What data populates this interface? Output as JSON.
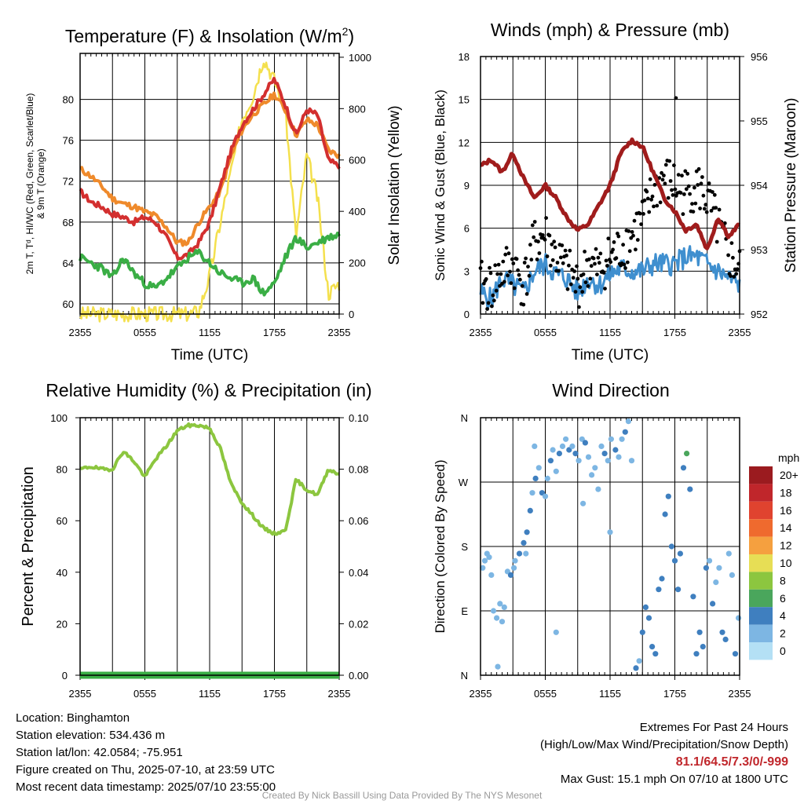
{
  "chart_data": [
    {
      "type": "line",
      "title": "Temperature (F) & Insolation (W/m²)",
      "title_prefix": "Temperature (F) & Insolation (W/m",
      "title_sup": "2",
      "title_suffix": ")",
      "xlabel": "Time (UTC)",
      "ylabel_left_lines": [
        "2m T, Tᵈ, HI/WC (Red, Green, Scarlet/Blue)",
        "& 9m T (Orange)"
      ],
      "ylabel_right": "Solar Insolation (Yellow)",
      "x_ticks": [
        "2355",
        "0555",
        "1155",
        "1755",
        "2355"
      ],
      "y_left_ticks": [
        60,
        64,
        68,
        72,
        76,
        80
      ],
      "y_left_range": [
        59,
        84.5
      ],
      "y_right_ticks": [
        0,
        200,
        400,
        600,
        800,
        1000
      ],
      "y_right_range": [
        0,
        1015
      ],
      "x_hours": [
        0,
        1,
        2,
        3,
        4,
        5,
        6,
        7,
        8,
        9,
        10,
        11,
        12,
        13,
        14,
        15,
        16,
        17,
        18,
        19,
        20,
        21,
        22,
        23,
        24
      ],
      "series": [
        {
          "color": "#ef8a2b",
          "axis": "left",
          "values": [
            73.2,
            72.5,
            71.5,
            70.3,
            69.8,
            69.5,
            69.0,
            68.6,
            67.5,
            66.0,
            66.0,
            68.0,
            69.5,
            71.0,
            74.5,
            77.0,
            78.5,
            79.5,
            80.5,
            79.0,
            76.5,
            78.0,
            77.5,
            75.0,
            74.5
          ]
        },
        {
          "color": "#d32f2f",
          "axis": "left",
          "values": [
            71.0,
            70.0,
            69.5,
            68.8,
            68.5,
            68.0,
            68.5,
            68.0,
            66.5,
            64.5,
            64.8,
            66.0,
            68.0,
            71.5,
            75.0,
            77.5,
            79.0,
            80.5,
            82.0,
            79.5,
            76.5,
            79.0,
            78.5,
            74.0,
            73.5
          ]
        },
        {
          "color": "#3aae45",
          "axis": "left",
          "values": [
            64.5,
            64.0,
            63.5,
            62.5,
            64.5,
            63.0,
            62.0,
            61.5,
            62.5,
            63.5,
            64.5,
            65.0,
            64.0,
            63.0,
            62.5,
            62.0,
            62.5,
            61.0,
            62.0,
            64.5,
            66.5,
            65.5,
            66.0,
            66.5,
            66.8
          ]
        },
        {
          "color": "#f4e04d",
          "axis": "right",
          "values": [
            0,
            0,
            0,
            0,
            0,
            0,
            0,
            0,
            0,
            0,
            0,
            10,
            150,
            360,
            560,
            760,
            850,
            1000,
            910,
            800,
            300,
            620,
            450,
            80,
            120
          ]
        }
      ]
    },
    {
      "type": "scatter",
      "title": "Winds (mph) & Pressure (mb)",
      "xlabel": "Time (UTC)",
      "ylabel_left": "Sonic Wind & Gust (Blue, Black)",
      "ylabel_right": "Station Pressure (Maroon)",
      "x_ticks": [
        "2355",
        "0555",
        "1155",
        "1755",
        "2355"
      ],
      "y_left_ticks": [
        0,
        3,
        6,
        9,
        12,
        15,
        18
      ],
      "y_left_range": [
        0,
        18
      ],
      "y_right_ticks": [
        952,
        953,
        954,
        955,
        956
      ],
      "y_right_range": [
        952,
        956
      ],
      "x_hours": [
        0,
        1,
        2,
        3,
        4,
        5,
        6,
        7,
        8,
        9,
        10,
        11,
        12,
        13,
        14,
        15,
        16,
        17,
        18,
        19,
        20,
        21,
        22,
        23,
        24
      ],
      "series": [
        {
          "type": "line",
          "color": "#3f8fcf",
          "axis": "left",
          "values": [
            1.5,
            1.0,
            2.5,
            2.0,
            1.5,
            3.0,
            3.5,
            2.8,
            2.5,
            1.5,
            2.5,
            2.0,
            2.8,
            3.2,
            3.0,
            3.0,
            3.5,
            3.5,
            3.5,
            4.0,
            4.0,
            3.5,
            3.0,
            2.5,
            2.0
          ]
        },
        {
          "type": "points",
          "color": "#000000",
          "axis": "left",
          "values": [
            2.0,
            1.8,
            3.0,
            3.5,
            2.0,
            5.0,
            5.5,
            4.0,
            3.0,
            2.0,
            3.5,
            3.0,
            4.0,
            4.5,
            5.5,
            6.5,
            8.5,
            9.5,
            9.0,
            8.5,
            9.0,
            8.0,
            6.0,
            4.0,
            3.0
          ],
          "max_point": {
            "x_hour": 18.1,
            "value": 15.1
          }
        },
        {
          "type": "line",
          "color": "#a01c1c",
          "axis": "right",
          "values": [
            954.3,
            954.4,
            954.2,
            954.5,
            954.1,
            953.8,
            954.0,
            953.8,
            953.5,
            953.3,
            953.4,
            953.7,
            954.0,
            954.5,
            954.7,
            954.6,
            954.2,
            953.8,
            953.6,
            953.3,
            953.4,
            953.0,
            953.5,
            953.2,
            953.4
          ]
        }
      ]
    },
    {
      "type": "line",
      "title": "Relative Humidity (%) & Precipitation (in)",
      "ylabel_left": "Percent & Precipitation",
      "x_ticks": [
        "2355",
        "0555",
        "1155",
        "1755",
        "2355"
      ],
      "y_left_ticks": [
        0,
        20,
        40,
        60,
        80,
        100
      ],
      "y_left_range": [
        0,
        100
      ],
      "y_right_ticks": [
        "0.00",
        "0.02",
        "0.04",
        "0.06",
        "0.08",
        "0.10"
      ],
      "y_right_range": [
        0,
        0.1
      ],
      "x_hours": [
        0,
        1,
        2,
        3,
        4,
        5,
        6,
        7,
        8,
        9,
        10,
        11,
        12,
        13,
        14,
        15,
        16,
        17,
        18,
        19,
        20,
        21,
        22,
        23,
        24
      ],
      "series": [
        {
          "color": "#8cc63f",
          "axis": "left",
          "values": [
            80,
            81,
            80,
            80,
            87,
            83,
            77,
            84,
            89,
            95,
            97,
            97,
            96,
            88,
            74,
            67,
            62,
            57,
            55,
            56,
            76,
            72,
            70,
            80,
            78
          ]
        },
        {
          "color": "#3aae45",
          "axis": "right",
          "values": [
            0,
            0,
            0,
            0,
            0,
            0,
            0,
            0,
            0,
            0,
            0,
            0,
            0,
            0,
            0,
            0,
            0,
            0,
            0,
            0,
            0,
            0,
            0,
            0,
            0
          ]
        }
      ]
    },
    {
      "type": "scatter",
      "title": "Wind Direction",
      "ylabel_left": "Direction (Colored By Speed)",
      "x_ticks": [
        "2355",
        "0555",
        "1155",
        "1755",
        "2355"
      ],
      "y_left_ticks": [
        "N",
        "E",
        "S",
        "W",
        "N"
      ],
      "y_left_range": [
        0,
        360
      ],
      "x_range_hours": [
        0,
        24
      ],
      "colorbar": {
        "unit": "mph",
        "labels": [
          "20+",
          "18",
          "16",
          "14",
          "12",
          "10",
          "8",
          "6",
          "4",
          "2",
          "0"
        ],
        "colors": [
          "#9b1b1f",
          "#c0262b",
          "#e0432f",
          "#ef6a2e",
          "#f5a03f",
          "#e7de55",
          "#8cc63f",
          "#4aa65c",
          "#3f7fbf",
          "#7db6e3",
          "#b4e0f5"
        ]
      },
      "points": [
        [
          0.2,
          150,
          1
        ],
        [
          0.4,
          160,
          1
        ],
        [
          0.6,
          170,
          1
        ],
        [
          0.8,
          165,
          1
        ],
        [
          1.0,
          140,
          2
        ],
        [
          1.2,
          90,
          2
        ],
        [
          1.5,
          80,
          2
        ],
        [
          1.8,
          100,
          2
        ],
        [
          2.0,
          75,
          2
        ],
        [
          2.2,
          95,
          2
        ],
        [
          2.5,
          145,
          2
        ],
        [
          2.8,
          140,
          3
        ],
        [
          3.2,
          160,
          2
        ],
        [
          3.6,
          170,
          3
        ],
        [
          4.0,
          185,
          3
        ],
        [
          4.3,
          200,
          3
        ],
        [
          4.6,
          230,
          3
        ],
        [
          4.8,
          255,
          2
        ],
        [
          5.1,
          275,
          3
        ],
        [
          5.4,
          290,
          2
        ],
        [
          5.7,
          255,
          3
        ],
        [
          6.0,
          250,
          2
        ],
        [
          6.2,
          275,
          2
        ],
        [
          6.5,
          300,
          3
        ],
        [
          6.7,
          315,
          2
        ],
        [
          7.0,
          285,
          2
        ],
        [
          7.3,
          310,
          3
        ],
        [
          7.6,
          320,
          2
        ],
        [
          7.9,
          330,
          2
        ],
        [
          8.2,
          315,
          3
        ],
        [
          8.5,
          320,
          2
        ],
        [
          8.8,
          310,
          3
        ],
        [
          9.1,
          300,
          2
        ],
        [
          9.4,
          330,
          2
        ],
        [
          9.7,
          325,
          3
        ],
        [
          10.0,
          305,
          2
        ],
        [
          10.3,
          280,
          2
        ],
        [
          10.6,
          290,
          2
        ],
        [
          10.9,
          260,
          2
        ],
        [
          11.2,
          320,
          2
        ],
        [
          11.5,
          310,
          3
        ],
        [
          11.8,
          300,
          2
        ],
        [
          12.1,
          330,
          2
        ],
        [
          12.5,
          315,
          3
        ],
        [
          12.8,
          305,
          2
        ],
        [
          13.1,
          330,
          2
        ],
        [
          13.4,
          340,
          3
        ],
        [
          13.7,
          355,
          2
        ],
        [
          14.0,
          300,
          2
        ],
        [
          14.4,
          10,
          3
        ],
        [
          14.7,
          20,
          2
        ],
        [
          15.0,
          60,
          3
        ],
        [
          15.3,
          95,
          3
        ],
        [
          15.6,
          80,
          3
        ],
        [
          15.9,
          40,
          3
        ],
        [
          16.2,
          30,
          4
        ],
        [
          16.5,
          120,
          3
        ],
        [
          16.8,
          135,
          3
        ],
        [
          17.1,
          225,
          3
        ],
        [
          17.4,
          250,
          3
        ],
        [
          17.7,
          180,
          3
        ],
        [
          18.0,
          160,
          4
        ],
        [
          18.3,
          120,
          3
        ],
        [
          18.5,
          170,
          4
        ],
        [
          18.8,
          290,
          4
        ],
        [
          19.1,
          310,
          6
        ],
        [
          19.4,
          260,
          3
        ],
        [
          19.7,
          110,
          3
        ],
        [
          20.0,
          30,
          4
        ],
        [
          20.3,
          60,
          3
        ],
        [
          20.6,
          40,
          3
        ],
        [
          20.9,
          150,
          3
        ],
        [
          21.2,
          160,
          2
        ],
        [
          21.5,
          100,
          3
        ],
        [
          21.8,
          130,
          2
        ],
        [
          22.1,
          150,
          2
        ],
        [
          22.4,
          60,
          3
        ],
        [
          22.7,
          50,
          3
        ],
        [
          23.0,
          170,
          2
        ],
        [
          23.3,
          140,
          2
        ],
        [
          23.6,
          30,
          3
        ],
        [
          23.9,
          80,
          2
        ],
        [
          1.6,
          12,
          1
        ],
        [
          5.0,
          320,
          2
        ],
        [
          7.0,
          60,
          1
        ],
        [
          9.5,
          240,
          1
        ],
        [
          12.0,
          200,
          1
        ],
        [
          3.1,
          150,
          1
        ],
        [
          4.2,
          170,
          2
        ]
      ]
    }
  ],
  "footer": {
    "location": "Location: Binghamton",
    "elevation": "Station elevation: 534.436 m",
    "latlon": "Station lat/lon: 42.0584; -75.951",
    "created": "Figure created on Thu, 2025-07-10, at 23:59 UTC",
    "recent": "Most recent data timestamp: 2025/07/10 23:55:00",
    "extremes_title": "Extremes For Past 24 Hours",
    "extremes_subtitle": "(High/Low/Max Wind/Precipitation/Snow Depth)",
    "extremes_values": "81.1/64.5/7.3/0/-999",
    "max_gust": "Max Gust: 15.1 mph On 07/10 at 1800 UTC",
    "credit": "Created By Nick Bassill Using Data Provided By The NYS Mesonet"
  }
}
